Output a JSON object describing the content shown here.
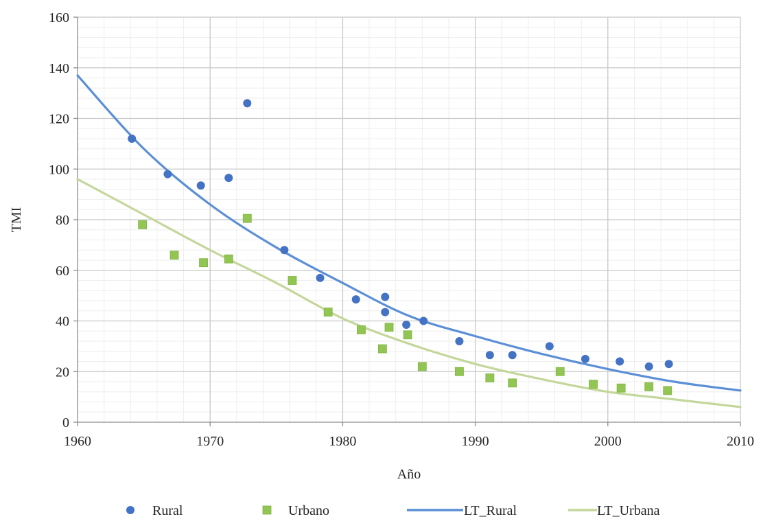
{
  "chart_data": {
    "type": "scatter",
    "xlabel": "Año",
    "ylabel": "TMI",
    "xlim": [
      1960,
      2010
    ],
    "ylim": [
      0,
      160
    ],
    "x_major_ticks": [
      1960,
      1970,
      1980,
      1990,
      2000,
      2010
    ],
    "y_major_ticks": [
      0,
      20,
      40,
      60,
      80,
      100,
      120,
      140,
      160
    ],
    "grid": {
      "major": true,
      "minor": true
    },
    "legend_position": "bottom",
    "series": [
      {
        "name": "Rural",
        "kind": "scatter",
        "marker": "circle",
        "color": "#4472C4",
        "points": [
          [
            1964.1,
            112
          ],
          [
            1966.8,
            98
          ],
          [
            1969.3,
            93.5
          ],
          [
            1971.4,
            96.5
          ],
          [
            1972.8,
            126
          ],
          [
            1975.6,
            68
          ],
          [
            1978.3,
            57
          ],
          [
            1981.0,
            48.5
          ],
          [
            1983.2,
            49.5
          ],
          [
            1983.2,
            43.5
          ],
          [
            1984.8,
            38.5
          ],
          [
            1986.1,
            40
          ],
          [
            1988.8,
            32
          ],
          [
            1991.1,
            26.5
          ],
          [
            1992.8,
            26.5
          ],
          [
            1995.6,
            30
          ],
          [
            1998.3,
            25
          ],
          [
            2000.9,
            24
          ],
          [
            2003.1,
            22
          ],
          [
            2004.6,
            23
          ]
        ]
      },
      {
        "name": "Urbano",
        "kind": "scatter",
        "marker": "square",
        "color": "#92C553",
        "points": [
          [
            1964.9,
            78
          ],
          [
            1967.3,
            66
          ],
          [
            1969.5,
            63
          ],
          [
            1971.4,
            64.5
          ],
          [
            1972.8,
            80.5
          ],
          [
            1976.2,
            56
          ],
          [
            1978.9,
            43.5
          ],
          [
            1981.4,
            36.5
          ],
          [
            1983.0,
            29
          ],
          [
            1983.5,
            37.5
          ],
          [
            1984.9,
            34.5
          ],
          [
            1986.0,
            22
          ],
          [
            1988.8,
            20
          ],
          [
            1991.1,
            17.5
          ],
          [
            1992.8,
            15.5
          ],
          [
            1996.4,
            20
          ],
          [
            1998.9,
            15
          ],
          [
            2001.0,
            13.5
          ],
          [
            2003.1,
            14
          ],
          [
            2004.5,
            12.5
          ]
        ]
      },
      {
        "name": "LT_Rural",
        "kind": "line",
        "color": "#5B8FD6",
        "x": [
          1960,
          1965,
          1970,
          1975,
          1980,
          1985,
          1990,
          1995,
          2000,
          2005,
          2010
        ],
        "y": [
          137,
          108,
          86,
          69,
          55,
          42,
          34,
          27,
          21,
          16,
          12.5
        ]
      },
      {
        "name": "LT_Urbana",
        "kind": "line",
        "color": "#C4D79B",
        "x": [
          1960,
          1965,
          1970,
          1975,
          1980,
          1985,
          1990,
          1995,
          2000,
          2005,
          2010
        ],
        "y": [
          96,
          82,
          68,
          55,
          41,
          31,
          23,
          17,
          12,
          9,
          6
        ]
      }
    ]
  }
}
